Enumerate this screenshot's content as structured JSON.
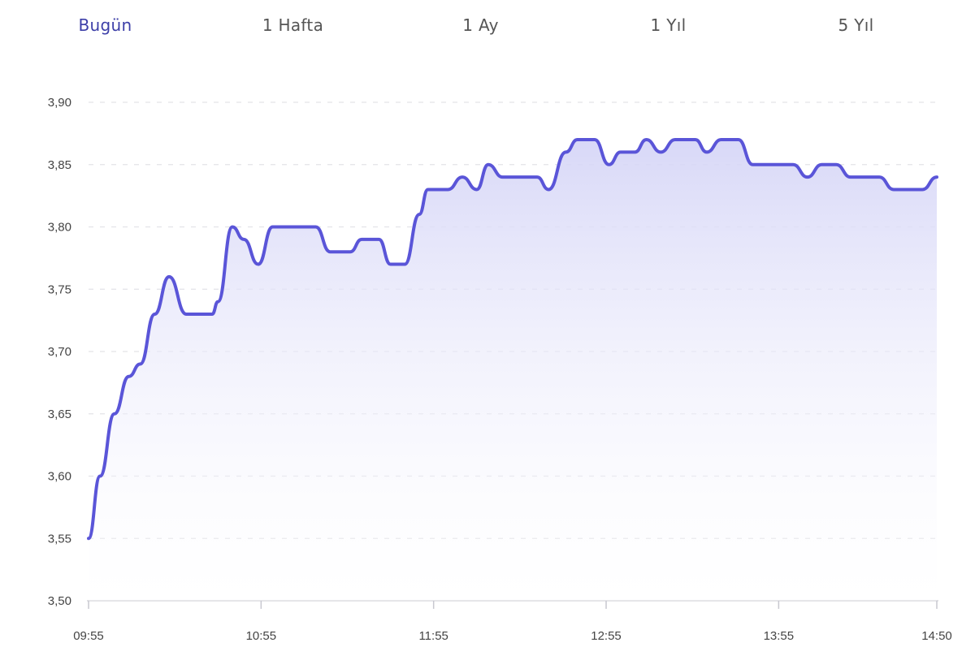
{
  "tabs": [
    {
      "label": "Bugün",
      "active": true
    },
    {
      "label": "1 Hafta",
      "active": false
    },
    {
      "label": "1 Ay",
      "active": false
    },
    {
      "label": "1 Yıl",
      "active": false
    },
    {
      "label": "5 Yıl",
      "active": false
    }
  ],
  "colors": {
    "line": "#5a55d8",
    "fill_top": "#d6d6f7",
    "active_tab_bg": "#eef0fb",
    "active_tab_text": "#3d3fa8"
  },
  "chart_data": {
    "type": "area",
    "title": "",
    "xlabel": "",
    "ylabel": "",
    "ylim": [
      3.5,
      3.9
    ],
    "xlim": [
      "09:55",
      "14:50"
    ],
    "grid": true,
    "y_ticks": [
      "3,50",
      "3,55",
      "3,60",
      "3,65",
      "3,70",
      "3,75",
      "3,80",
      "3,85",
      "3,90"
    ],
    "x_ticks": [
      "09:55",
      "10:55",
      "11:55",
      "12:55",
      "13:55",
      "14:50"
    ],
    "x": [
      "09:55",
      "09:59",
      "10:04",
      "10:09",
      "10:13",
      "10:18",
      "10:23",
      "10:29",
      "10:38",
      "10:40",
      "10:45",
      "10:49",
      "10:54",
      "10:59",
      "11:14",
      "11:19",
      "11:26",
      "11:30",
      "11:36",
      "11:40",
      "11:45",
      "11:50",
      "11:53",
      "12:00",
      "12:05",
      "12:10",
      "12:14",
      "12:19",
      "12:31",
      "12:35",
      "12:41",
      "12:45",
      "12:51",
      "12:56",
      "13:00",
      "13:05",
      "13:09",
      "13:14",
      "13:19",
      "13:26",
      "13:30",
      "13:35",
      "13:41",
      "13:46",
      "14:00",
      "14:05",
      "14:10",
      "14:15",
      "14:20",
      "14:30",
      "14:35",
      "14:45",
      "14:50"
    ],
    "y": [
      3.55,
      3.6,
      3.65,
      3.68,
      3.69,
      3.73,
      3.76,
      3.73,
      3.73,
      3.74,
      3.8,
      3.79,
      3.77,
      3.8,
      3.8,
      3.78,
      3.78,
      3.79,
      3.79,
      3.77,
      3.77,
      3.81,
      3.83,
      3.83,
      3.84,
      3.83,
      3.85,
      3.84,
      3.84,
      3.83,
      3.86,
      3.87,
      3.87,
      3.85,
      3.86,
      3.86,
      3.87,
      3.86,
      3.87,
      3.87,
      3.86,
      3.87,
      3.87,
      3.85,
      3.85,
      3.84,
      3.85,
      3.85,
      3.84,
      3.84,
      3.83,
      3.83,
      3.84
    ]
  }
}
